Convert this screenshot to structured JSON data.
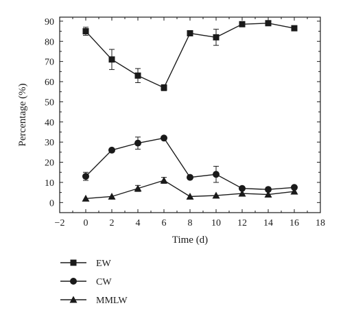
{
  "chart_data": {
    "type": "line",
    "title": "",
    "xlabel": "Time (d)",
    "ylabel": "Percentage (%)",
    "xlim": [
      -2,
      18
    ],
    "ylim": [
      -5,
      92
    ],
    "xticks": [
      -2,
      0,
      2,
      4,
      6,
      8,
      10,
      12,
      14,
      16,
      18
    ],
    "yticks": [
      0,
      10,
      20,
      30,
      40,
      50,
      60,
      70,
      80,
      90
    ],
    "grid": false,
    "legend_position": "bottom-left",
    "x": [
      0,
      2,
      4,
      6,
      8,
      10,
      12,
      14,
      16
    ],
    "series": [
      {
        "name": "EW",
        "marker": "square",
        "values": [
          85,
          71,
          63,
          57,
          84,
          82,
          88.5,
          89,
          86.5
        ],
        "errors": [
          2,
          5,
          3.5,
          1.5,
          0,
          4,
          0,
          0,
          0
        ]
      },
      {
        "name": "CW",
        "marker": "circle",
        "values": [
          13,
          26,
          29.5,
          32,
          12.5,
          14,
          7,
          6.5,
          7.5
        ],
        "errors": [
          2,
          0,
          3,
          0,
          0,
          4,
          0,
          0,
          0
        ]
      },
      {
        "name": "MMLW",
        "marker": "triangle",
        "values": [
          2,
          3,
          7,
          11,
          3,
          3.5,
          4.5,
          4,
          5.5
        ],
        "errors": [
          0,
          0,
          1.5,
          1.5,
          0,
          0,
          0,
          0,
          0
        ]
      }
    ]
  }
}
